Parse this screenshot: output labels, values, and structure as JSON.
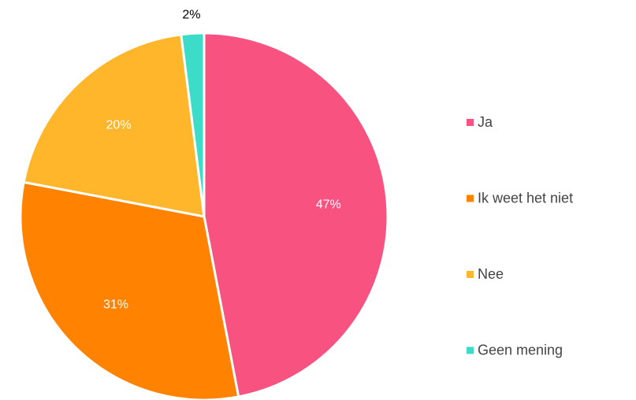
{
  "chart_data": {
    "type": "pie",
    "categories": [
      "Ja",
      "Ik weet het niet",
      "Nee",
      "Geen mening"
    ],
    "values": [
      47,
      31,
      20,
      2
    ],
    "value_labels": [
      "47%",
      "31%",
      "20%",
      "2%"
    ],
    "colors": [
      "#f75280",
      "#ff8200",
      "#ffb62b",
      "#3ddcc8"
    ],
    "legend": "right"
  }
}
